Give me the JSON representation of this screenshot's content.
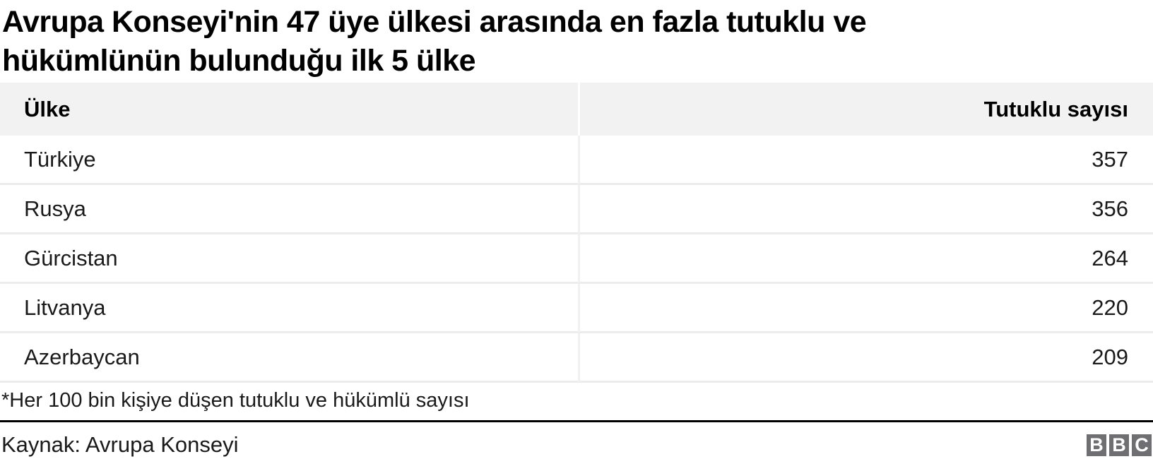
{
  "title": {
    "line1": "Avrupa Konseyi'nin 47 üye ülkesi arasında en fazla tutuklu ve",
    "line2": "hükümlünün bulunduğu ilk 5 ülke",
    "full": "Avrupa Konseyi'nin 47 üye ülkesi arasında en fazla tutuklu ve hükümlünün bulunduğu ilk 5 ülke"
  },
  "table": {
    "columns": [
      "Ülke",
      "Tutuklu sayısı"
    ],
    "rows": [
      {
        "country": "Türkiye",
        "value": "357"
      },
      {
        "country": "Rusya",
        "value": "356"
      },
      {
        "country": "Gürcistan",
        "value": "264"
      },
      {
        "country": "Litvanya",
        "value": "220"
      },
      {
        "country": "Azerbaycan",
        "value": "209"
      }
    ]
  },
  "footnote": "*Her 100 bin kişiye düşen tutuklu ve hükümlü sayısı",
  "source": "Kaynak: Avrupa Konseyi",
  "logo": {
    "letters": [
      "B",
      "B",
      "C"
    ]
  },
  "colors": {
    "header_background": "#f2f2f2",
    "row_border": "#ececec",
    "divider": "#000000",
    "logo_block": "#6f6f73",
    "text": "#1a1a1a"
  },
  "chart_data": {
    "type": "table",
    "title": "Avrupa Konseyi'nin 47 üye ülkesi arasında en fazla tutuklu ve hükümlünün bulunduğu ilk 5 ülke",
    "columns": [
      "Ülke",
      "Tutuklu sayısı"
    ],
    "categories": [
      "Türkiye",
      "Rusya",
      "Gürcistan",
      "Litvanya",
      "Azerbaycan"
    ],
    "values": [
      357,
      356,
      264,
      220,
      209
    ],
    "footnote": "*Her 100 bin kişiye düşen tutuklu ve hükümlü sayısı",
    "source": "Kaynak: Avrupa Konseyi"
  }
}
